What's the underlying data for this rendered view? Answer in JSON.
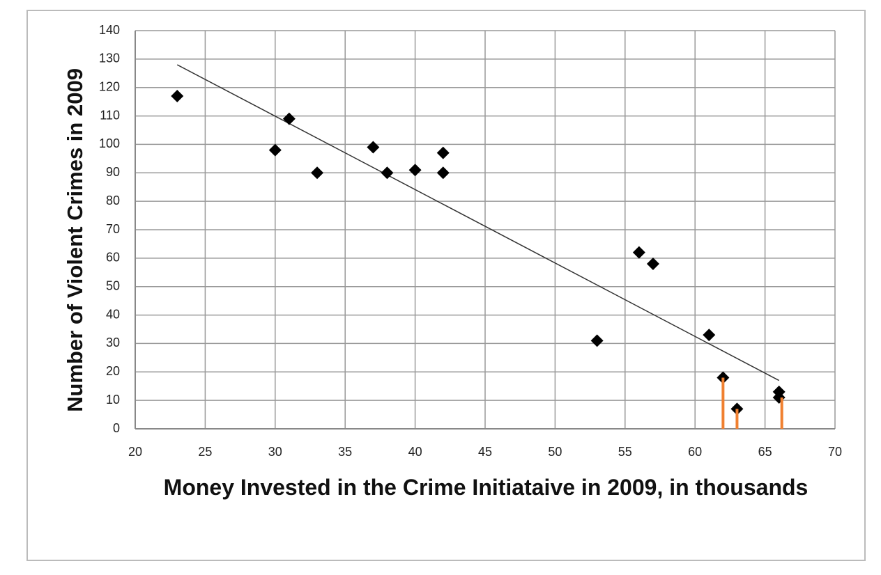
{
  "chart_data": {
    "type": "scatter",
    "x_label": "Money Invested in the Crime Initiataive in 2009, in thousands",
    "y_label": "Number of Violent Crimes in 2009",
    "series": [
      {
        "color": "#000000",
        "x": [
          23,
          30,
          31,
          33,
          37,
          38,
          40,
          42,
          42,
          53,
          56,
          57,
          61,
          62,
          63,
          66,
          66
        ],
        "values": [
          117,
          98,
          109,
          90,
          99,
          90,
          91,
          97,
          90,
          31,
          62,
          58,
          33,
          18,
          7,
          13,
          11
        ]
      }
    ],
    "trendline": {
      "color": "#333333",
      "x": [
        23,
        66
      ],
      "values": [
        128,
        17
      ]
    },
    "highlights": {
      "color": "#f08030",
      "x": [
        62,
        63,
        66.2
      ],
      "values": [
        18,
        7,
        11
      ]
    },
    "xlim": [
      20,
      70
    ],
    "xticks": [
      20,
      25,
      30,
      35,
      40,
      45,
      50,
      55,
      60,
      65,
      70
    ],
    "ylim": [
      0,
      140
    ],
    "yticks": [
      0,
      10,
      20,
      30,
      40,
      50,
      60,
      70,
      80,
      90,
      100,
      110,
      120,
      130,
      140
    ],
    "grid": true
  }
}
